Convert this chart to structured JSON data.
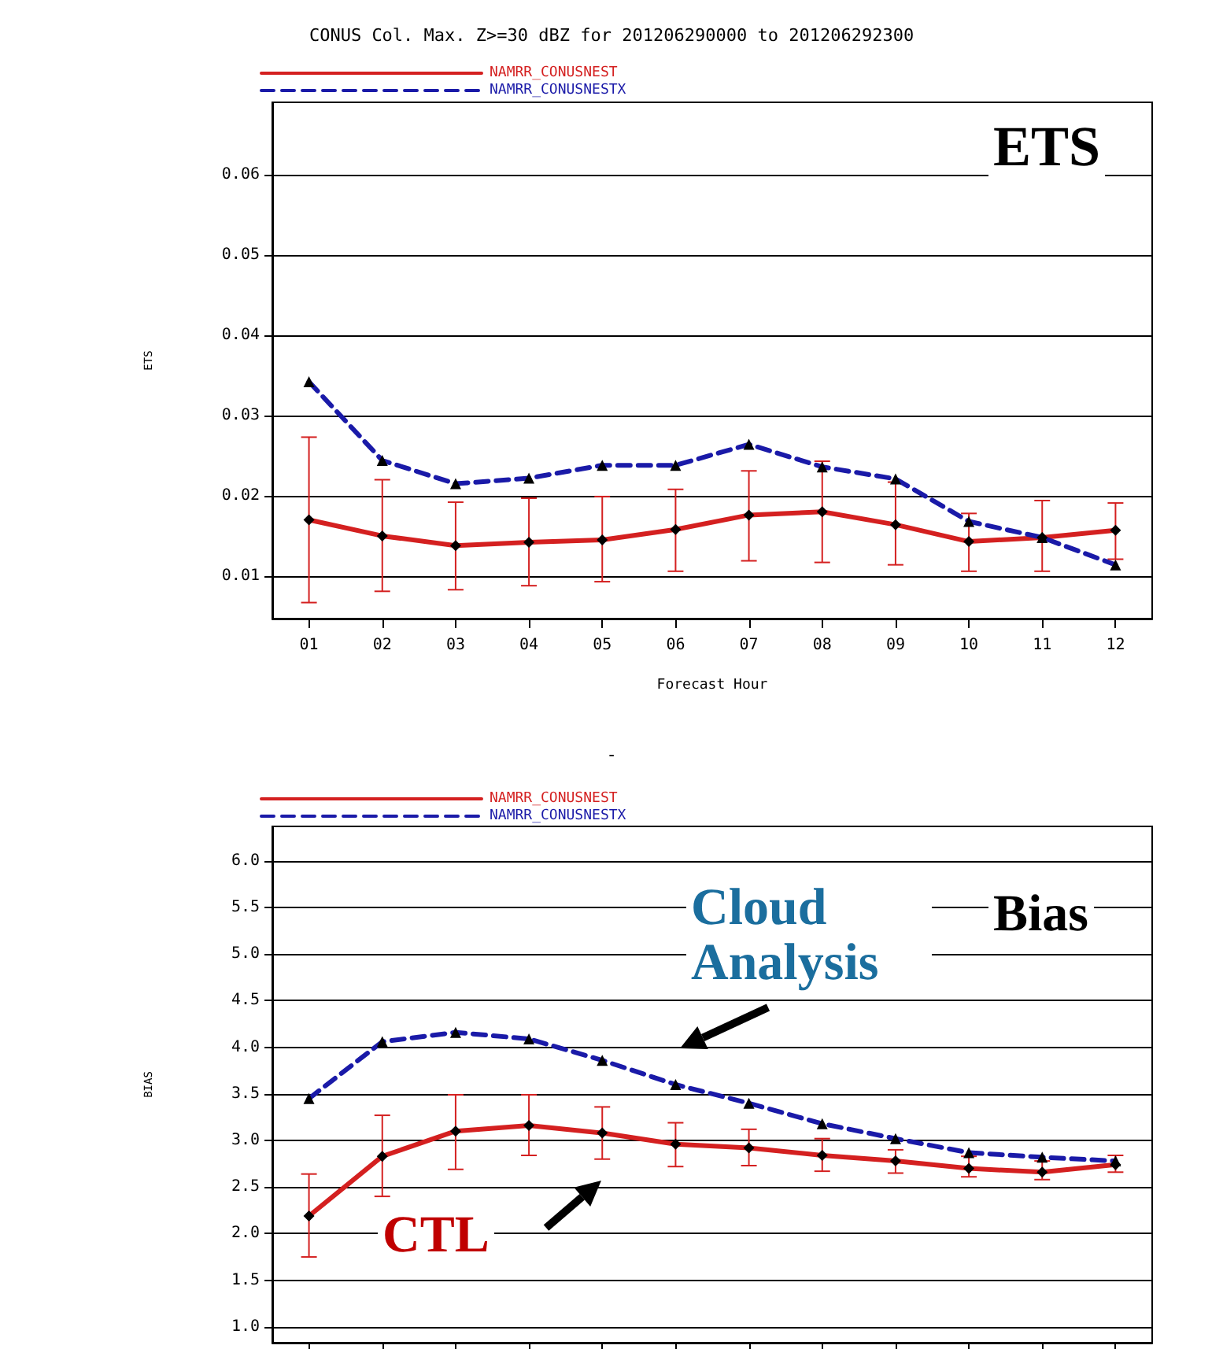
{
  "chart_data": [
    {
      "type": "line",
      "title": "CONUS Col. Max. Z>=30 dBZ for 201206290000 to 201206292300",
      "xlabel": "Forecast Hour",
      "ylabel": "ETS",
      "annotations": [
        "ETS"
      ],
      "categories": [
        "01",
        "02",
        "03",
        "04",
        "05",
        "06",
        "07",
        "08",
        "09",
        "10",
        "11",
        "12"
      ],
      "series": [
        {
          "name": "NAMRR_CONUSNEST",
          "color": "#d42020",
          "marker": "diamond",
          "line_style": "solid",
          "values": [
            0.017,
            0.015,
            0.0138,
            0.0142,
            0.0145,
            0.0158,
            0.0176,
            0.018,
            0.0164,
            0.0143,
            0.0148,
            0.0157
          ],
          "errors": [
            [
              0.0067,
              0.0273
            ],
            [
              0.0081,
              0.022
            ],
            [
              0.0083,
              0.0192
            ],
            [
              0.0088,
              0.0197
            ],
            [
              0.0093,
              0.0199
            ],
            [
              0.0106,
              0.0208
            ],
            [
              0.0119,
              0.0231
            ],
            [
              0.0117,
              0.0243
            ],
            [
              0.0114,
              0.0217
            ],
            [
              0.0106,
              0.0178
            ],
            [
              0.0106,
              0.0194
            ],
            [
              0.0121,
              0.0191
            ]
          ]
        },
        {
          "name": "NAMRR_CONUSNESTX",
          "color": "#1a1aa8",
          "marker": "triangle",
          "line_style": "dashed",
          "values": [
            0.0342,
            0.0244,
            0.0215,
            0.0222,
            0.0238,
            0.0238,
            0.0264,
            0.0236,
            0.0221,
            0.0168,
            0.0148,
            0.0114
          ]
        }
      ],
      "ylim": [
        0.0047,
        0.069
      ],
      "yticks": [
        {
          "value": 0.01,
          "label": "0.01"
        },
        {
          "value": 0.02,
          "label": "0.02"
        },
        {
          "value": 0.03,
          "label": "0.03"
        },
        {
          "value": 0.04,
          "label": "0.04"
        },
        {
          "value": 0.05,
          "label": "0.05"
        },
        {
          "value": 0.06,
          "label": "0.06"
        }
      ],
      "grid": "y",
      "legend": "top left"
    },
    {
      "type": "line",
      "title": "-",
      "ylabel": "BIAS",
      "annotations": [
        "Cloud Analysis",
        "Bias",
        "CTL"
      ],
      "categories": [
        null,
        null,
        null,
        null,
        null,
        null,
        null,
        null,
        null,
        null,
        null,
        null
      ],
      "series": [
        {
          "name": "NAMRR_CONUSNEST",
          "color": "#d42020",
          "marker": "diamond",
          "line_style": "solid",
          "values": [
            2.19,
            2.83,
            3.1,
            3.16,
            3.08,
            2.96,
            2.92,
            2.84,
            2.78,
            2.7,
            2.66,
            2.74
          ],
          "errors": [
            [
              1.75,
              2.64
            ],
            [
              2.4,
              3.27
            ],
            [
              2.69,
              3.49
            ],
            [
              2.84,
              3.49
            ],
            [
              2.8,
              3.36
            ],
            [
              2.72,
              3.19
            ],
            [
              2.73,
              3.12
            ],
            [
              2.67,
              3.02
            ],
            [
              2.65,
              2.9
            ],
            [
              2.61,
              2.83
            ],
            [
              2.58,
              2.78
            ],
            [
              2.66,
              2.84
            ]
          ]
        },
        {
          "name": "NAMRR_CONUSNESTX",
          "color": "#1a1aa8",
          "marker": "triangle",
          "line_style": "dashed",
          "values": [
            3.45,
            4.06,
            4.16,
            4.09,
            3.86,
            3.6,
            3.4,
            3.18,
            3.02,
            2.87,
            2.82,
            2.78
          ]
        }
      ],
      "ylim": [
        0.83,
        6.37
      ],
      "yticks": [
        {
          "value": 1.0,
          "label": "1.0"
        },
        {
          "value": 1.5,
          "label": "1.5"
        },
        {
          "value": 2.0,
          "label": "2.0"
        },
        {
          "value": 2.5,
          "label": "2.5"
        },
        {
          "value": 3.0,
          "label": "3.0"
        },
        {
          "value": 3.5,
          "label": "3.5"
        },
        {
          "value": 4.0,
          "label": "4.0"
        },
        {
          "value": 4.5,
          "label": "4.5"
        },
        {
          "value": 5.0,
          "label": "5.0"
        },
        {
          "value": 5.5,
          "label": "5.5"
        },
        {
          "value": 6.0,
          "label": "6.0"
        }
      ],
      "grid": "y",
      "legend": "top left",
      "tick_labels": "y"
    }
  ]
}
